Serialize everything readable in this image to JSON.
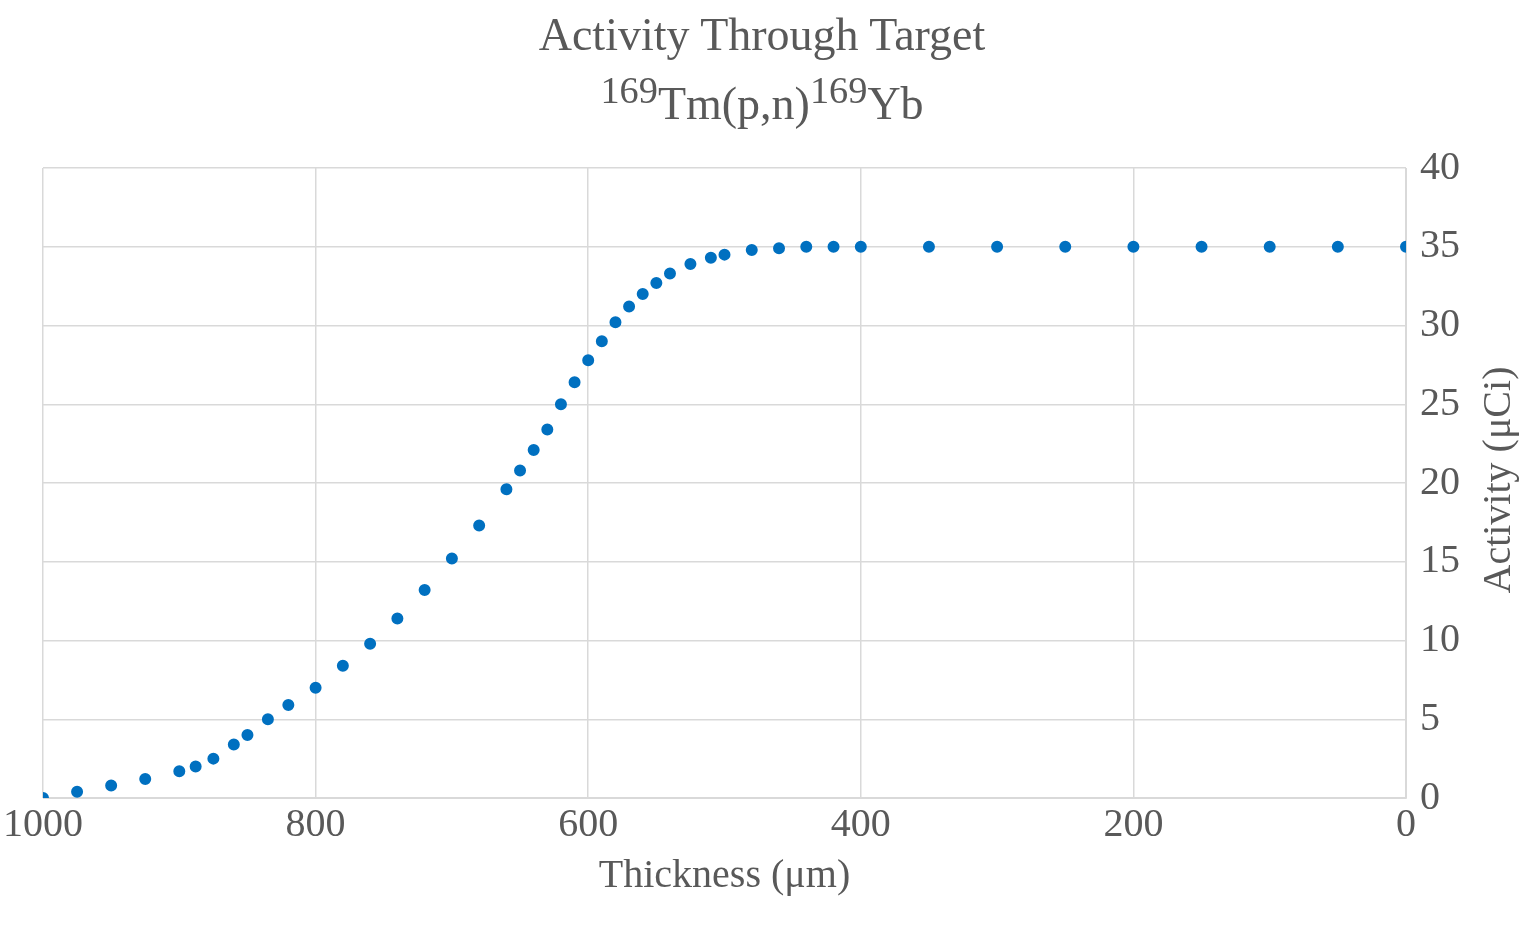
{
  "chart_data": {
    "type": "scatter",
    "title": "Activity Through Target",
    "subtitle": "$^{169}$Tm(p,n)$^{169}$Yb",
    "xlabel": "Thickness (μm)",
    "ylabel": "Activity (μCi)",
    "x": [
      1000,
      975,
      950,
      925,
      900,
      888,
      875,
      860,
      850,
      835,
      820,
      800,
      780,
      760,
      740,
      720,
      700,
      680,
      660,
      650,
      640,
      630,
      620,
      610,
      600,
      590,
      580,
      570,
      560,
      550,
      540,
      525,
      510,
      500,
      480,
      460,
      440,
      420,
      400,
      350,
      300,
      250,
      200,
      150,
      100,
      50,
      0
    ],
    "series": [
      {
        "color": "#0070c0",
        "values": [
          0,
          0.4,
          0.8,
          1.2,
          1.7,
          2.0,
          2.5,
          3.4,
          4.0,
          5.0,
          5.9,
          7.0,
          8.4,
          9.8,
          11.4,
          13.2,
          15.2,
          17.3,
          19.6,
          20.8,
          22.1,
          23.4,
          25.0,
          26.4,
          27.8,
          29.0,
          30.2,
          31.2,
          32.0,
          32.7,
          33.3,
          33.9,
          34.3,
          34.5,
          34.8,
          34.9,
          35.0,
          35.0,
          35.0,
          35.0,
          35.0,
          35.0,
          35.0,
          35.0,
          35.0,
          35.0,
          35.0
        ]
      }
    ],
    "xlim": [
      1000,
      0
    ],
    "xticks": [
      1000,
      800,
      600,
      400,
      200,
      0
    ],
    "ylim": [
      0,
      40
    ],
    "yticks": [
      0,
      5,
      10,
      15,
      20,
      25,
      30,
      35,
      40
    ],
    "grid": true,
    "legend": false,
    "marker": "circle"
  }
}
